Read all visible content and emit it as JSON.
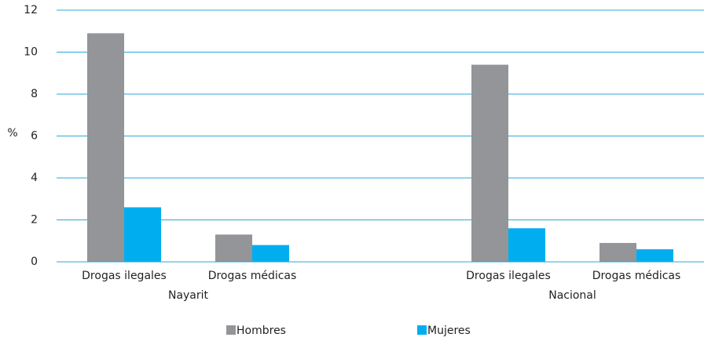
{
  "chart_data": {
    "type": "bar",
    "ylabel": "%",
    "groups": [
      {
        "name": "Nayarit",
        "categories": [
          "Drogas ilegales",
          "Drogas médicas"
        ]
      },
      {
        "name": "Nacional",
        "categories": [
          "Drogas ilegales",
          "Drogas médicas"
        ]
      }
    ],
    "series": [
      {
        "name": "Hombres",
        "color": "#939598",
        "values": [
          10.9,
          1.3,
          9.4,
          0.9
        ]
      },
      {
        "name": "Mujeres",
        "color": "#00aeef",
        "values": [
          2.6,
          0.8,
          1.6,
          0.6
        ]
      }
    ],
    "ylim": [
      0,
      12
    ],
    "yticks": [
      0,
      2,
      4,
      6,
      8,
      10,
      12
    ],
    "grid": true,
    "grid_color": "#29a9d8",
    "legend": "bottom"
  }
}
